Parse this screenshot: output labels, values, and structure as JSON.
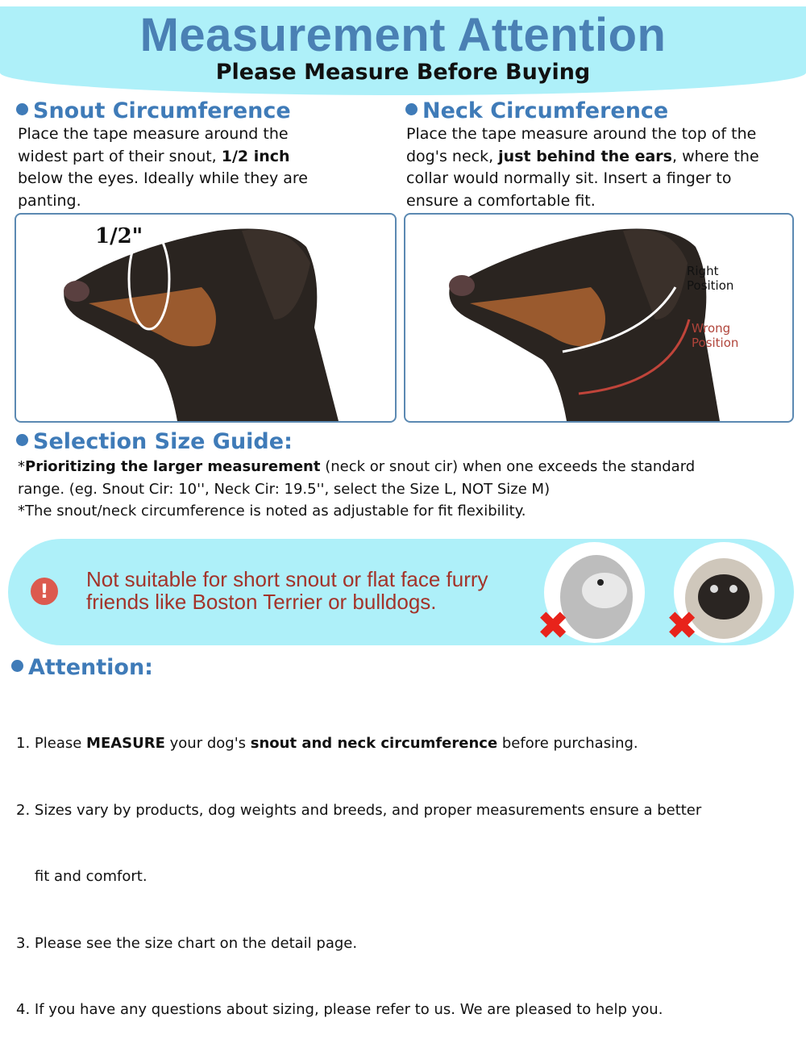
{
  "header": {
    "title": "Measurement Attention",
    "subtitle": "Please Measure Before Buying"
  },
  "snout": {
    "heading": "Snout Circumference",
    "lines": [
      [
        "Place the tape measure around the",
        "",
        ""
      ],
      [
        "widest part of their snout, ",
        "1/2 inch",
        ""
      ],
      [
        "below the eyes. Ideally while they are",
        "",
        ""
      ],
      [
        "panting.",
        "",
        ""
      ]
    ],
    "image_label": "1/2\""
  },
  "neck": {
    "heading": "Neck Circumference",
    "lines": [
      [
        "Place the tape measure around the top of the",
        "",
        ""
      ],
      [
        "dog's neck, ",
        "just behind the ears",
        ", where the"
      ],
      [
        "collar would normally sit. Insert a finger to",
        "",
        ""
      ],
      [
        "ensure a comfortable fit.",
        "",
        ""
      ]
    ],
    "right_label": [
      "Right",
      "Position"
    ],
    "wrong_label": [
      "Wrong",
      "Position"
    ]
  },
  "size_guide": {
    "heading": "Selection Size Guide:",
    "line1_prefix": "*",
    "line1_bold": "Prioritizing the larger measurement",
    "line1_rest": " (neck or snout cir) when one exceeds the standard",
    "line2": "range. (eg. Snout Cir: 10'', Neck Cir: 19.5'', select the Size L, NOT Size M)",
    "line3": "*The snout/neck circumference is noted as adjustable for fit flexibility."
  },
  "warning": {
    "icon": "exclamation-icon",
    "line1": "Not suitable for short snout or flat face furry",
    "line2": "friends like Boston Terrier or bulldogs.",
    "cross": "✖"
  },
  "attention": {
    "heading": "Attention:",
    "items": [
      [
        "1. Please ",
        "MEASURE",
        " your dog's ",
        "snout and neck circumference",
        " before purchasing."
      ],
      [
        "2. Sizes vary by products, dog weights and breeds, and proper measurements ensure a better",
        "",
        "",
        "",
        ""
      ],
      [
        "    fit and comfort.",
        "",
        "",
        "",
        ""
      ],
      [
        "3. Please see the size chart on the detail page.",
        "",
        "",
        "",
        ""
      ],
      [
        "4. If you have any questions about sizing, please refer to us. We are pleased to help you.",
        "",
        "",
        "",
        ""
      ]
    ]
  },
  "colors": {
    "accent": "#3f7bb8",
    "band": "#aef0f9",
    "warning_text": "#a3332a",
    "cross": "#e8231b"
  }
}
